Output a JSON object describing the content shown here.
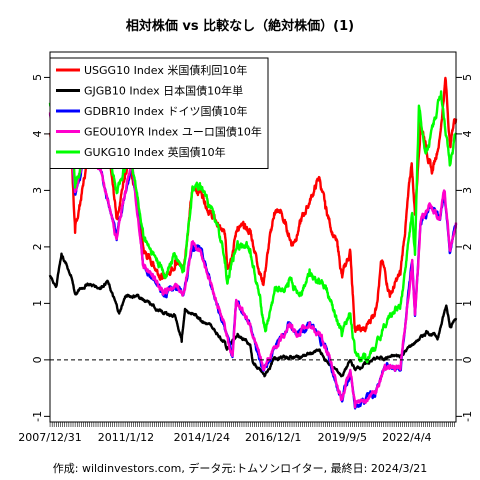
{
  "chart_data": {
    "type": "line",
    "title": "相対株価 vs 比較なし（絶対株価）(1)",
    "caption": "作成: wildinvestors.com, データ元:トムソンロイター, 最終日: 2024/3/21",
    "xlabel": "",
    "ylabel": "",
    "x_tick_labels": [
      "2007/12/31",
      "2011/1/12",
      "2014/1/24",
      "2016/12/1",
      "2019/9/5",
      "2022/4/4"
    ],
    "x_range": [
      "2007-12-31",
      "2024-03-21"
    ],
    "ylim": [
      -1.1,
      5.45
    ],
    "y_ticks": [
      -1,
      0,
      1,
      2,
      3,
      4,
      5
    ],
    "y_tick_labels": [
      "-1",
      "0",
      "1",
      "2",
      "3",
      "4",
      "5"
    ],
    "grid": false,
    "legend_position": "top-left",
    "reference_line": {
      "y": 0,
      "style": "dashed"
    },
    "series": [
      {
        "name": "USGG10 Index 米国債利回10年",
        "color": "#ff0000",
        "points": [
          [
            "2007-12-31",
            4.02
          ],
          [
            "2008-03-31",
            3.45
          ],
          [
            "2008-06-30",
            3.98
          ],
          [
            "2008-10-31",
            3.95
          ],
          [
            "2008-12-31",
            2.25
          ],
          [
            "2009-06-30",
            3.55
          ],
          [
            "2009-12-31",
            3.83
          ],
          [
            "2010-04-01",
            3.92
          ],
          [
            "2010-08-31",
            2.5
          ],
          [
            "2010-12-31",
            3.3
          ],
          [
            "2011-02-28",
            3.65
          ],
          [
            "2011-09-30",
            1.92
          ],
          [
            "2012-07-24",
            1.45
          ],
          [
            "2012-12-31",
            1.76
          ],
          [
            "2013-05-01",
            1.63
          ],
          [
            "2013-09-05",
            2.98
          ],
          [
            "2013-12-31",
            3.03
          ],
          [
            "2014-06-30",
            2.53
          ],
          [
            "2014-12-31",
            2.17
          ],
          [
            "2015-01-30",
            1.64
          ],
          [
            "2015-06-30",
            2.35
          ],
          [
            "2015-12-31",
            2.27
          ],
          [
            "2016-07-06",
            1.36
          ],
          [
            "2016-12-15",
            2.6
          ],
          [
            "2017-03-13",
            2.62
          ],
          [
            "2017-09-07",
            2.05
          ],
          [
            "2017-12-29",
            2.41
          ],
          [
            "2018-10-05",
            3.23
          ],
          [
            "2018-12-31",
            2.68
          ],
          [
            "2019-06-28",
            2.0
          ],
          [
            "2019-09-03",
            1.46
          ],
          [
            "2019-12-31",
            1.92
          ],
          [
            "2020-03-09",
            0.54
          ],
          [
            "2020-08-04",
            0.51
          ],
          [
            "2020-12-31",
            0.91
          ],
          [
            "2021-03-31",
            1.74
          ],
          [
            "2021-08-04",
            1.17
          ],
          [
            "2021-12-31",
            1.51
          ],
          [
            "2022-06-14",
            3.48
          ],
          [
            "2022-08-01",
            2.57
          ],
          [
            "2022-10-24",
            4.25
          ],
          [
            "2022-12-30",
            3.87
          ],
          [
            "2023-04-05",
            3.3
          ],
          [
            "2023-07-31",
            3.96
          ],
          [
            "2023-10-19",
            4.99
          ],
          [
            "2023-12-27",
            3.79
          ],
          [
            "2024-02-23",
            4.25
          ],
          [
            "2024-03-21",
            4.27
          ]
        ]
      },
      {
        "name": "GJGB10 Index 日本国債10年単",
        "color": "#000000",
        "points": [
          [
            "2007-12-31",
            1.5
          ],
          [
            "2008-03-31",
            1.3
          ],
          [
            "2008-06-16",
            1.88
          ],
          [
            "2008-10-31",
            1.5
          ],
          [
            "2008-12-31",
            1.17
          ],
          [
            "2009-06-30",
            1.35
          ],
          [
            "2009-12-31",
            1.28
          ],
          [
            "2010-04-15",
            1.4
          ],
          [
            "2010-10-06",
            0.82
          ],
          [
            "2010-12-31",
            1.12
          ],
          [
            "2011-06-30",
            1.14
          ],
          [
            "2011-12-30",
            0.98
          ],
          [
            "2012-06-29",
            0.83
          ],
          [
            "2012-12-28",
            0.79
          ],
          [
            "2013-04-05",
            0.32
          ],
          [
            "2013-05-23",
            0.9
          ],
          [
            "2013-12-31",
            0.74
          ],
          [
            "2014-06-30",
            0.56
          ],
          [
            "2014-12-30",
            0.32
          ],
          [
            "2015-01-20",
            0.2
          ],
          [
            "2015-06-30",
            0.46
          ],
          [
            "2015-12-30",
            0.27
          ],
          [
            "2016-02-09",
            -0.05
          ],
          [
            "2016-07-27",
            -0.29
          ],
          [
            "2016-12-30",
            0.04
          ],
          [
            "2017-12-29",
            0.05
          ],
          [
            "2018-10-04",
            0.16
          ],
          [
            "2018-12-28",
            0.0
          ],
          [
            "2019-08-30",
            -0.28
          ],
          [
            "2019-12-30",
            -0.02
          ],
          [
            "2020-03-09",
            -0.17
          ],
          [
            "2020-12-30",
            0.02
          ],
          [
            "2021-12-30",
            0.07
          ],
          [
            "2022-06-15",
            0.26
          ],
          [
            "2022-12-20",
            0.45
          ],
          [
            "2023-01-13",
            0.51
          ],
          [
            "2023-06-30",
            0.4
          ],
          [
            "2023-11-01",
            0.96
          ],
          [
            "2023-12-28",
            0.61
          ],
          [
            "2024-03-21",
            0.74
          ]
        ]
      },
      {
        "name": "GDBR10 Index ドイツ国債10年",
        "color": "#0000ff",
        "points": [
          [
            "2007-12-31",
            4.35
          ],
          [
            "2008-03-31",
            3.9
          ],
          [
            "2008-06-30",
            4.6
          ],
          [
            "2008-10-31",
            3.9
          ],
          [
            "2008-12-31",
            2.95
          ],
          [
            "2009-06-11",
            3.7
          ],
          [
            "2009-12-31",
            3.39
          ],
          [
            "2010-08-31",
            2.12
          ],
          [
            "2010-12-31",
            2.96
          ],
          [
            "2011-04-08",
            3.48
          ],
          [
            "2011-09-23",
            1.68
          ],
          [
            "2012-07-23",
            1.17
          ],
          [
            "2012-12-31",
            1.32
          ],
          [
            "2013-05-02",
            1.17
          ],
          [
            "2013-09-11",
            2.05
          ],
          [
            "2013-12-31",
            1.93
          ],
          [
            "2014-06-30",
            1.25
          ],
          [
            "2014-12-31",
            0.54
          ],
          [
            "2015-04-17",
            0.05
          ],
          [
            "2015-06-10",
            1.05
          ],
          [
            "2015-12-31",
            0.63
          ],
          [
            "2016-07-08",
            -0.19
          ],
          [
            "2016-12-30",
            0.21
          ],
          [
            "2017-07-10",
            0.6
          ],
          [
            "2017-12-29",
            0.43
          ],
          [
            "2018-05-16",
            0.65
          ],
          [
            "2018-12-31",
            0.24
          ],
          [
            "2019-08-28",
            -0.71
          ],
          [
            "2019-12-31",
            -0.19
          ],
          [
            "2020-03-09",
            -0.86
          ],
          [
            "2020-12-31",
            -0.57
          ],
          [
            "2021-05-19",
            -0.1
          ],
          [
            "2021-12-31",
            -0.18
          ],
          [
            "2022-06-21",
            1.75
          ],
          [
            "2022-08-01",
            0.78
          ],
          [
            "2022-10-21",
            2.42
          ],
          [
            "2022-12-30",
            2.57
          ],
          [
            "2023-03-02",
            2.75
          ],
          [
            "2023-07-31",
            2.48
          ],
          [
            "2023-10-04",
            2.97
          ],
          [
            "2023-12-27",
            1.91
          ],
          [
            "2024-03-21",
            2.41
          ]
        ]
      },
      {
        "name": "GEOU10YR Index ユーロ国債10年",
        "color": "#ff00cc",
        "points": [
          [
            "2007-12-31",
            4.38
          ],
          [
            "2008-03-31",
            3.92
          ],
          [
            "2008-06-30",
            4.62
          ],
          [
            "2008-10-31",
            3.92
          ],
          [
            "2008-12-31",
            2.97
          ],
          [
            "2009-06-11",
            3.72
          ],
          [
            "2009-12-31",
            3.4
          ],
          [
            "2010-08-31",
            2.14
          ],
          [
            "2010-12-31",
            2.98
          ],
          [
            "2011-04-08",
            3.5
          ],
          [
            "2011-09-23",
            1.7
          ],
          [
            "2012-07-23",
            1.18
          ],
          [
            "2012-12-31",
            1.34
          ],
          [
            "2013-05-02",
            1.18
          ],
          [
            "2013-09-11",
            2.06
          ],
          [
            "2013-12-31",
            1.95
          ],
          [
            "2014-06-30",
            1.27
          ],
          [
            "2014-12-31",
            0.55
          ],
          [
            "2015-04-17",
            0.07
          ],
          [
            "2015-06-10",
            1.06
          ],
          [
            "2015-12-31",
            0.64
          ],
          [
            "2016-07-08",
            -0.17
          ],
          [
            "2016-12-30",
            0.22
          ],
          [
            "2017-07-10",
            0.61
          ],
          [
            "2017-12-29",
            0.44
          ],
          [
            "2018-05-16",
            0.66
          ],
          [
            "2018-12-31",
            0.25
          ],
          [
            "2019-08-28",
            -0.69
          ],
          [
            "2019-12-31",
            -0.18
          ],
          [
            "2020-03-09",
            -0.84
          ],
          [
            "2020-12-31",
            -0.55
          ],
          [
            "2021-05-19",
            -0.09
          ],
          [
            "2021-12-31",
            -0.17
          ],
          [
            "2022-06-21",
            1.77
          ],
          [
            "2022-08-01",
            0.8
          ],
          [
            "2022-10-21",
            2.44
          ],
          [
            "2022-12-30",
            2.58
          ],
          [
            "2023-03-02",
            2.77
          ],
          [
            "2023-07-31",
            2.5
          ],
          [
            "2023-10-04",
            2.99
          ],
          [
            "2023-12-27",
            1.93
          ],
          [
            "2024-03-21",
            2.43
          ]
        ]
      },
      {
        "name": "GUKG10 Index 英国債10年",
        "color": "#00ff00",
        "points": [
          [
            "2007-12-31",
            4.55
          ],
          [
            "2008-03-31",
            4.3
          ],
          [
            "2008-06-30",
            5.1
          ],
          [
            "2008-10-31",
            4.4
          ],
          [
            "2008-12-31",
            3.05
          ],
          [
            "2009-06-30",
            3.8
          ],
          [
            "2009-12-31",
            4.0
          ],
          [
            "2010-03-31",
            4.05
          ],
          [
            "2010-08-31",
            2.95
          ],
          [
            "2010-12-31",
            3.4
          ],
          [
            "2011-02-08",
            3.95
          ],
          [
            "2011-09-23",
            2.2
          ],
          [
            "2012-08-01",
            1.5
          ],
          [
            "2012-12-31",
            1.85
          ],
          [
            "2013-05-02",
            1.6
          ],
          [
            "2013-09-05",
            2.98
          ],
          [
            "2013-12-31",
            3.02
          ],
          [
            "2014-06-30",
            2.67
          ],
          [
            "2014-12-31",
            1.76
          ],
          [
            "2015-01-30",
            1.35
          ],
          [
            "2015-06-30",
            2.1
          ],
          [
            "2015-12-31",
            1.96
          ],
          [
            "2016-08-12",
            0.52
          ],
          [
            "2016-12-30",
            1.24
          ],
          [
            "2017-07-10",
            1.3
          ],
          [
            "2017-12-29",
            1.19
          ],
          [
            "2018-05-16",
            1.6
          ],
          [
            "2018-12-31",
            1.28
          ],
          [
            "2019-08-28",
            0.42
          ],
          [
            "2019-12-31",
            0.82
          ],
          [
            "2020-03-09",
            0.13
          ],
          [
            "2020-08-04",
            0.1
          ],
          [
            "2020-12-31",
            0.2
          ],
          [
            "2021-06-30",
            0.72
          ],
          [
            "2021-12-31",
            0.97
          ],
          [
            "2022-06-21",
            2.6
          ],
          [
            "2022-08-01",
            1.86
          ],
          [
            "2022-09-27",
            4.5
          ],
          [
            "2022-12-30",
            3.67
          ],
          [
            "2023-03-02",
            3.89
          ],
          [
            "2023-08-17",
            4.75
          ],
          [
            "2023-12-27",
            3.46
          ],
          [
            "2024-03-21",
            4.02
          ]
        ]
      }
    ]
  }
}
